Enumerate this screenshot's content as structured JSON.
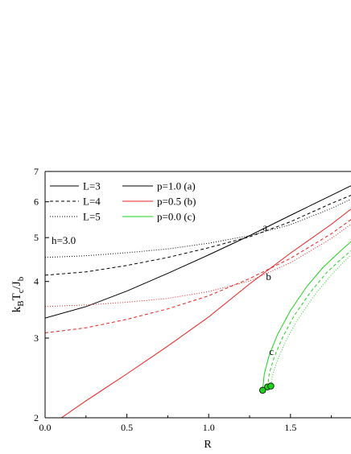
{
  "chart_data": {
    "type": "line",
    "title": "",
    "xlabel": "R",
    "ylabel": {
      "base": "k",
      "sub1": "B",
      "mid": "T",
      "sub2": "c",
      "slash": "/J",
      "sub3": "b"
    },
    "xlim": [
      0.0,
      1.87
    ],
    "ylim": [
      2,
      7
    ],
    "yscale": "log",
    "grid": false,
    "legend_position": "top-left",
    "x_ticks": [
      0.0,
      0.5,
      1.0,
      1.5
    ],
    "x_tick_labels": [
      "0.0",
      "0.5",
      "1.0",
      "1.5"
    ],
    "y_ticks": [
      2,
      3,
      4,
      5,
      6,
      7
    ],
    "y_tick_labels": [
      "2",
      "3",
      "4",
      "5",
      "6",
      "7"
    ],
    "annotation_h": "h=3.0",
    "annotations": [
      {
        "text": "a",
        "x": 1.33,
        "y": 5.18
      },
      {
        "text": "b",
        "x": 1.35,
        "y": 4.03
      },
      {
        "text": "c",
        "x": 1.37,
        "y": 2.75
      }
    ],
    "legend_linestyles": [
      {
        "label": "L=3",
        "dash": "solid"
      },
      {
        "label": "L=4",
        "dash": "dashed"
      },
      {
        "label": "L=5",
        "dash": "dotted"
      }
    ],
    "legend_colors": [
      {
        "label": "p=1.0 (a)",
        "color": "#000000"
      },
      {
        "label": "p=0.5 (b)",
        "color": "#e8201c"
      },
      {
        "label": "p=0.0 (c)",
        "color": "#1ed21a"
      }
    ],
    "series": [
      {
        "p": 1.0,
        "L": 3,
        "color": "#000000",
        "dash": "solid",
        "x": [
          0.0,
          0.25,
          0.5,
          0.75,
          1.0,
          1.25,
          1.5,
          1.75,
          1.87
        ],
        "y": [
          3.32,
          3.52,
          3.81,
          4.17,
          4.58,
          5.05,
          5.6,
          6.2,
          6.51
        ]
      },
      {
        "p": 1.0,
        "L": 4,
        "color": "#000000",
        "dash": "dashed",
        "x": [
          0.0,
          0.25,
          0.5,
          0.75,
          1.0,
          1.25,
          1.5,
          1.75,
          1.87
        ],
        "y": [
          4.13,
          4.2,
          4.34,
          4.52,
          4.75,
          5.02,
          5.42,
          5.95,
          6.2
        ]
      },
      {
        "p": 1.0,
        "L": 5,
        "color": "#000000",
        "dash": "dotted",
        "x": [
          0.0,
          0.25,
          0.5,
          0.75,
          1.0,
          1.25,
          1.5,
          1.75,
          1.87
        ],
        "y": [
          4.52,
          4.56,
          4.63,
          4.72,
          4.86,
          5.05,
          5.34,
          5.8,
          6.08
        ]
      },
      {
        "p": 0.5,
        "L": 3,
        "color": "#e8201c",
        "dash": "solid",
        "x": [
          0.1,
          0.25,
          0.5,
          0.75,
          1.0,
          1.25,
          1.5,
          1.75,
          1.87
        ],
        "y": [
          2.0,
          2.18,
          2.5,
          2.88,
          3.34,
          3.95,
          4.62,
          5.35,
          5.78
        ]
      },
      {
        "p": 0.5,
        "L": 4,
        "color": "#e8201c",
        "dash": "dashed",
        "x": [
          0.0,
          0.25,
          0.5,
          0.75,
          1.0,
          1.25,
          1.5,
          1.75,
          1.87
        ],
        "y": [
          3.08,
          3.16,
          3.3,
          3.48,
          3.72,
          4.06,
          4.5,
          5.1,
          5.48
        ]
      },
      {
        "p": 0.5,
        "L": 5,
        "color": "#e8201c",
        "dash": "dotted",
        "x": [
          0.0,
          0.25,
          0.5,
          0.75,
          1.0,
          1.25,
          1.5,
          1.75,
          1.87
        ],
        "y": [
          3.52,
          3.55,
          3.6,
          3.67,
          3.8,
          4.01,
          4.4,
          4.98,
          5.35
        ]
      },
      {
        "p": 0.0,
        "L": 3,
        "color": "#1ed21a",
        "dash": "solid",
        "x": [
          1.33,
          1.34,
          1.37,
          1.42,
          1.5,
          1.6,
          1.7,
          1.8,
          1.87
        ],
        "y": [
          2.3,
          2.5,
          2.75,
          3.05,
          3.45,
          3.9,
          4.3,
          4.65,
          4.9
        ]
      },
      {
        "p": 0.0,
        "L": 4,
        "color": "#1ed21a",
        "dash": "dashed",
        "x": [
          1.36,
          1.37,
          1.4,
          1.45,
          1.52,
          1.62,
          1.72,
          1.8,
          1.87
        ],
        "y": [
          2.33,
          2.5,
          2.72,
          3.0,
          3.35,
          3.78,
          4.18,
          4.45,
          4.68
        ]
      },
      {
        "p": 0.0,
        "L": 5,
        "color": "#1ed21a",
        "dash": "dotted",
        "x": [
          1.38,
          1.39,
          1.42,
          1.47,
          1.54,
          1.64,
          1.74,
          1.81,
          1.87
        ],
        "y": [
          2.34,
          2.48,
          2.68,
          2.95,
          3.28,
          3.7,
          4.1,
          4.36,
          4.58
        ]
      }
    ],
    "markers": {
      "color": "#1ed21a",
      "points": [
        {
          "x": 1.33,
          "y": 2.3
        },
        {
          "x": 1.36,
          "y": 2.34
        },
        {
          "x": 1.38,
          "y": 2.35
        }
      ]
    }
  }
}
